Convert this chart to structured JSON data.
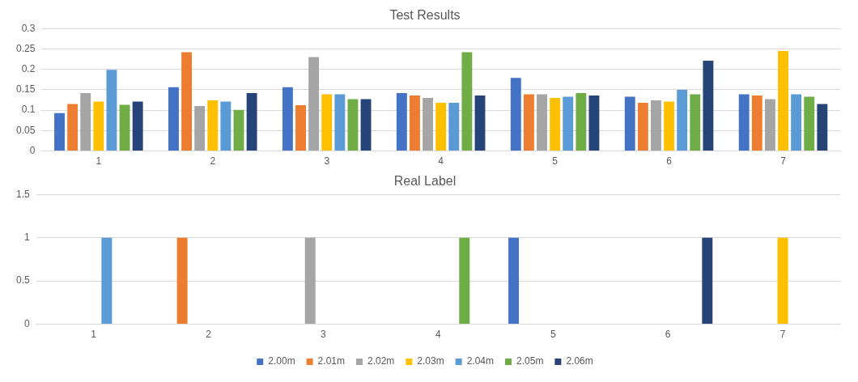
{
  "chart_data": [
    {
      "type": "bar",
      "title": "Test Results",
      "categories": [
        "1",
        "2",
        "3",
        "4",
        "5",
        "6",
        "7"
      ],
      "ylim": [
        0,
        0.3
      ],
      "yticks": [
        0,
        0.05,
        0.1,
        0.15,
        0.2,
        0.25,
        0.3
      ],
      "grid": "y",
      "legend": false,
      "series": [
        {
          "color": "#4472c4",
          "values": [
            0.093,
            0.156,
            0.156,
            0.142,
            0.179,
            0.133,
            0.139
          ]
        },
        {
          "color": "#ed7d31",
          "values": [
            0.115,
            0.242,
            0.112,
            0.136,
            0.139,
            0.118,
            0.136
          ]
        },
        {
          "color": "#a5a5a5",
          "values": [
            0.142,
            0.11,
            0.23,
            0.13,
            0.139,
            0.124,
            0.127
          ]
        },
        {
          "color": "#ffc000",
          "values": [
            0.121,
            0.124,
            0.139,
            0.118,
            0.13,
            0.121,
            0.245
          ]
        },
        {
          "color": "#5b9bd5",
          "values": [
            0.199,
            0.121,
            0.139,
            0.118,
            0.133,
            0.15,
            0.139
          ]
        },
        {
          "color": "#70ad47",
          "values": [
            0.113,
            0.101,
            0.127,
            0.242,
            0.142,
            0.139,
            0.133
          ]
        },
        {
          "color": "#264478",
          "values": [
            0.121,
            0.142,
            0.127,
            0.136,
            0.136,
            0.221,
            0.115
          ]
        }
      ]
    },
    {
      "type": "bar",
      "title": "Real Label",
      "categories": [
        "1",
        "2",
        "3",
        "4",
        "5",
        "6",
        "7"
      ],
      "ylim": [
        0,
        1.5
      ],
      "yticks": [
        0,
        0.5,
        1,
        1.5
      ],
      "grid": "y",
      "legend": "bottom",
      "series": [
        {
          "name": "2.00m",
          "color": "#4472c4",
          "values": [
            0,
            0,
            0,
            0,
            1,
            0,
            0
          ]
        },
        {
          "name": "2.01m",
          "color": "#ed7d31",
          "values": [
            0,
            1,
            0,
            0,
            0,
            0,
            0
          ]
        },
        {
          "name": "2.02m",
          "color": "#a5a5a5",
          "values": [
            0,
            0,
            1,
            0,
            0,
            0,
            0
          ]
        },
        {
          "name": "2.03m",
          "color": "#ffc000",
          "values": [
            0,
            0,
            0,
            0,
            0,
            0,
            1
          ]
        },
        {
          "name": "2.04m",
          "color": "#5b9bd5",
          "values": [
            1,
            0,
            0,
            0,
            0,
            0,
            0
          ]
        },
        {
          "name": "2.05m",
          "color": "#70ad47",
          "values": [
            0,
            0,
            0,
            1,
            0,
            0,
            0
          ]
        },
        {
          "name": "2.06m",
          "color": "#264478",
          "values": [
            0,
            0,
            0,
            0,
            0,
            1,
            0
          ]
        }
      ]
    }
  ]
}
